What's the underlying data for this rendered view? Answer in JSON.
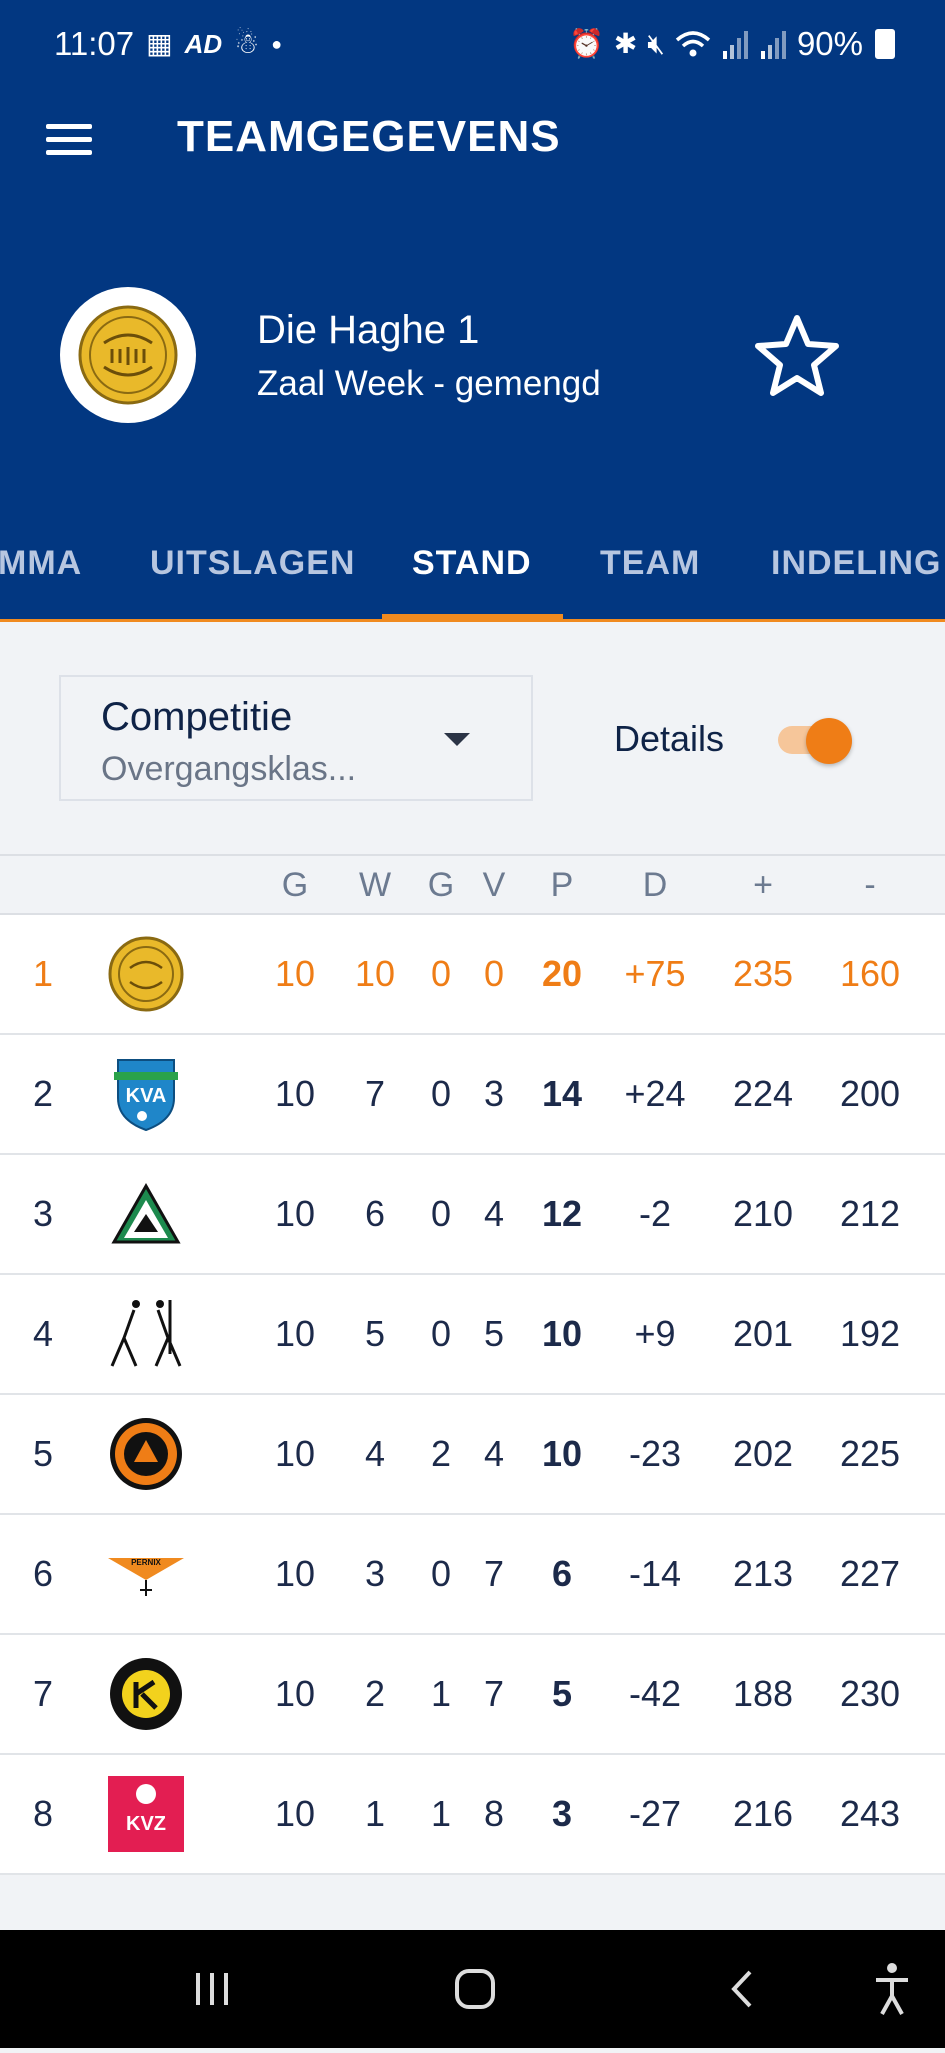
{
  "status_bar": {
    "time": "11:07",
    "left_icons": [
      "calendar-icon",
      "ad-icon",
      "notification-icon",
      "dot-icon"
    ],
    "right_icons": [
      "alarm-icon",
      "bluetooth-icon",
      "mute-icon",
      "wifi-icon",
      "signal-icon",
      "signal-icon"
    ],
    "battery": "90%"
  },
  "header": {
    "title": "TEAMGEGEVENS",
    "team_name": "Die Haghe 1",
    "team_subtitle": "Zaal Week - gemengd"
  },
  "tabs": [
    {
      "label": "MMA",
      "active": false
    },
    {
      "label": "UITSLAGEN",
      "active": false
    },
    {
      "label": "STAND",
      "active": true
    },
    {
      "label": "TEAM",
      "active": false
    },
    {
      "label": "INDELING",
      "active": false
    }
  ],
  "filter": {
    "label": "Competitie",
    "value": "Overgangsklas..."
  },
  "details": {
    "label": "Details",
    "enabled": true
  },
  "table": {
    "columns": [
      "G",
      "W",
      "G",
      "V",
      "P",
      "D",
      "+",
      "-"
    ],
    "rows": [
      {
        "pos": "1",
        "logo": "die-haghe-logo",
        "g": "10",
        "w": "10",
        "gl": "0",
        "v": "0",
        "p": "20",
        "d": "+75",
        "plus": "235",
        "minus": "160",
        "highlight": true
      },
      {
        "pos": "2",
        "logo": "kva-logo",
        "g": "10",
        "w": "7",
        "gl": "0",
        "v": "3",
        "p": "14",
        "d": "+24",
        "plus": "224",
        "minus": "200",
        "highlight": false
      },
      {
        "pos": "3",
        "logo": "triangle-club-logo",
        "g": "10",
        "w": "6",
        "gl": "0",
        "v": "4",
        "p": "12",
        "d": "-2",
        "plus": "210",
        "minus": "212",
        "highlight": false
      },
      {
        "pos": "4",
        "logo": "korfball-players-logo",
        "g": "10",
        "w": "5",
        "gl": "0",
        "v": "5",
        "p": "10",
        "d": "+9",
        "plus": "201",
        "minus": "192",
        "highlight": false
      },
      {
        "pos": "5",
        "logo": "kv-vitesse-logo",
        "g": "10",
        "w": "4",
        "gl": "2",
        "v": "4",
        "p": "10",
        "d": "-23",
        "plus": "202",
        "minus": "225",
        "highlight": false
      },
      {
        "pos": "6",
        "logo": "pernix-logo",
        "g": "10",
        "w": "3",
        "gl": "0",
        "v": "7",
        "p": "6",
        "d": "-14",
        "plus": "213",
        "minus": "227",
        "highlight": false
      },
      {
        "pos": "7",
        "logo": "black-yellow-club-logo",
        "g": "10",
        "w": "2",
        "gl": "1",
        "v": "7",
        "p": "5",
        "d": "-42",
        "plus": "188",
        "minus": "230",
        "highlight": false
      },
      {
        "pos": "8",
        "logo": "kvz-logo",
        "g": "10",
        "w": "1",
        "gl": "1",
        "v": "8",
        "p": "3",
        "d": "-27",
        "plus": "216",
        "minus": "243",
        "highlight": false
      }
    ]
  },
  "nav_bar": [
    "recent-apps-icon",
    "home-icon",
    "back-icon",
    "accessibility-icon"
  ],
  "colors": {
    "header_bg": "#023781",
    "accent": "#ef7d16",
    "text_dark": "#1c2a4a"
  }
}
